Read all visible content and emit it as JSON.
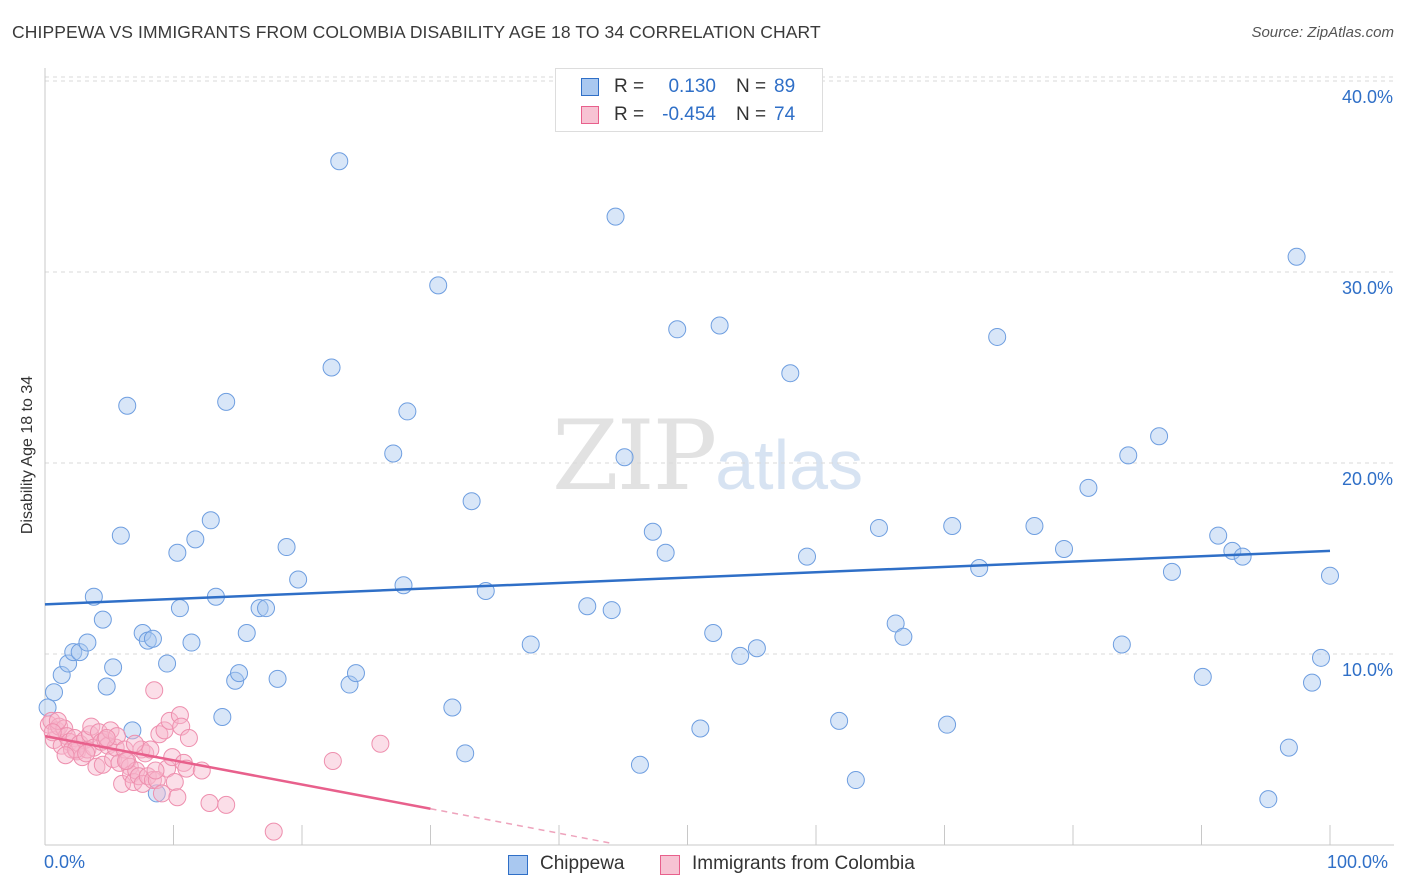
{
  "title": "CHIPPEWA VS IMMIGRANTS FROM COLOMBIA DISABILITY AGE 18 TO 34 CORRELATION CHART",
  "source": "Source: ZipAtlas.com",
  "watermark": {
    "zip": "ZIP",
    "atlas": "atlas"
  },
  "legend": {
    "rows": [
      {
        "r_label": "R =",
        "r_value": "0.130",
        "n_label": "N =",
        "n_value": "89"
      },
      {
        "r_label": "R =",
        "r_value": "-0.454",
        "n_label": "N =",
        "n_value": "74"
      }
    ]
  },
  "bottom_legend": [
    "Chippewa",
    "Immigrants from Colombia"
  ],
  "colors": {
    "blue": "#2f6fc7",
    "blue_fill": "#a9c8f0",
    "pink": "#e8608c",
    "pink_fill": "#f7b6cb"
  },
  "chart_data": {
    "type": "scatter",
    "title": "CHIPPEWA VS IMMIGRANTS FROM COLOMBIA DISABILITY AGE 18 TO 34 CORRELATION CHART",
    "xlabel": "",
    "ylabel": "Disability Age 18 to 34",
    "xlim": [
      0,
      100
    ],
    "ylim": [
      0,
      40
    ],
    "x_tick_labels": [
      "0.0%",
      "100.0%"
    ],
    "y_ticks": [
      10,
      20,
      30,
      40
    ],
    "y_tick_labels": [
      "10.0%",
      "20.0%",
      "30.0%",
      "40.0%"
    ],
    "grid": true,
    "legend_position": "top-center",
    "series": [
      {
        "name": "Chippewa",
        "color": "#2f6fc7",
        "trend": {
          "x": [
            0,
            100
          ],
          "y": [
            12.6,
            15.4
          ]
        },
        "points": [
          [
            0.7,
            8.0
          ],
          [
            1.3,
            8.9
          ],
          [
            1.8,
            9.5
          ],
          [
            2.2,
            10.1
          ],
          [
            2.7,
            10.1
          ],
          [
            3.3,
            10.6
          ],
          [
            3.8,
            13.0
          ],
          [
            4.5,
            11.8
          ],
          [
            4.8,
            8.3
          ],
          [
            5.3,
            9.3
          ],
          [
            5.9,
            16.2
          ],
          [
            6.4,
            23.0
          ],
          [
            6.8,
            6.0
          ],
          [
            7.6,
            11.1
          ],
          [
            8.0,
            10.7
          ],
          [
            8.4,
            10.8
          ],
          [
            8.7,
            2.7
          ],
          [
            9.5,
            9.5
          ],
          [
            10.3,
            15.3
          ],
          [
            10.5,
            12.4
          ],
          [
            11.4,
            10.6
          ],
          [
            11.7,
            16.0
          ],
          [
            12.9,
            17.0
          ],
          [
            13.3,
            13.0
          ],
          [
            13.8,
            6.7
          ],
          [
            14.1,
            23.2
          ],
          [
            14.8,
            8.6
          ],
          [
            15.1,
            9.0
          ],
          [
            15.7,
            11.1
          ],
          [
            16.7,
            12.4
          ],
          [
            17.2,
            12.4
          ],
          [
            18.1,
            8.7
          ],
          [
            18.8,
            15.6
          ],
          [
            19.7,
            13.9
          ],
          [
            22.3,
            25.0
          ],
          [
            22.9,
            35.8
          ],
          [
            23.7,
            8.4
          ],
          [
            24.2,
            9.0
          ],
          [
            27.1,
            20.5
          ],
          [
            27.9,
            13.6
          ],
          [
            28.2,
            22.7
          ],
          [
            30.6,
            29.3
          ],
          [
            31.7,
            7.2
          ],
          [
            32.7,
            4.8
          ],
          [
            33.2,
            18.0
          ],
          [
            34.3,
            13.3
          ],
          [
            37.8,
            10.5
          ],
          [
            42.2,
            12.5
          ],
          [
            44.1,
            12.3
          ],
          [
            44.4,
            32.9
          ],
          [
            45.1,
            20.3
          ],
          [
            46.3,
            4.2
          ],
          [
            47.3,
            16.4
          ],
          [
            48.3,
            15.3
          ],
          [
            49.2,
            27.0
          ],
          [
            51.0,
            6.1
          ],
          [
            52.0,
            11.1
          ],
          [
            52.5,
            27.2
          ],
          [
            54.1,
            9.9
          ],
          [
            55.4,
            10.3
          ],
          [
            58.0,
            24.7
          ],
          [
            59.3,
            15.1
          ],
          [
            61.8,
            6.5
          ],
          [
            63.1,
            3.4
          ],
          [
            64.9,
            16.6
          ],
          [
            66.2,
            11.6
          ],
          [
            66.8,
            10.9
          ],
          [
            70.2,
            6.3
          ],
          [
            70.6,
            16.7
          ],
          [
            72.7,
            14.5
          ],
          [
            74.1,
            26.6
          ],
          [
            77.0,
            16.7
          ],
          [
            79.3,
            15.5
          ],
          [
            81.2,
            18.7
          ],
          [
            83.8,
            10.5
          ],
          [
            84.3,
            20.4
          ],
          [
            86.7,
            21.4
          ],
          [
            87.7,
            14.3
          ],
          [
            90.1,
            8.8
          ],
          [
            91.3,
            16.2
          ],
          [
            92.4,
            15.4
          ],
          [
            93.2,
            15.1
          ],
          [
            95.2,
            2.4
          ],
          [
            96.8,
            5.1
          ],
          [
            97.4,
            30.8
          ],
          [
            98.6,
            8.5
          ],
          [
            99.3,
            9.8
          ],
          [
            100.0,
            14.1
          ],
          [
            0.2,
            7.2
          ]
        ]
      },
      {
        "name": "Immigrants from Colombia",
        "color": "#e8608c",
        "trend": {
          "x": [
            0,
            30
          ],
          "y": [
            5.7,
            1.9
          ]
        },
        "trend_dashed": {
          "x": [
            30,
            44
          ],
          "y": [
            1.9,
            0.1
          ]
        },
        "points": [
          [
            0.3,
            6.3
          ],
          [
            0.5,
            6.5
          ],
          [
            0.7,
            5.5
          ],
          [
            0.9,
            6.0
          ],
          [
            1.1,
            6.2
          ],
          [
            1.3,
            5.2
          ],
          [
            1.5,
            6.1
          ],
          [
            1.7,
            5.7
          ],
          [
            1.9,
            5.4
          ],
          [
            2.1,
            5.0
          ],
          [
            2.3,
            5.6
          ],
          [
            2.5,
            4.9
          ],
          [
            2.7,
            5.3
          ],
          [
            2.9,
            4.6
          ],
          [
            3.1,
            5.5
          ],
          [
            3.3,
            5.0
          ],
          [
            3.5,
            5.8
          ],
          [
            3.6,
            6.2
          ],
          [
            3.8,
            5.1
          ],
          [
            4.0,
            4.1
          ],
          [
            4.2,
            5.9
          ],
          [
            4.4,
            5.4
          ],
          [
            4.5,
            4.2
          ],
          [
            4.7,
            5.5
          ],
          [
            4.9,
            5.2
          ],
          [
            5.1,
            6.0
          ],
          [
            5.3,
            4.5
          ],
          [
            5.5,
            5.1
          ],
          [
            5.6,
            5.7
          ],
          [
            5.8,
            4.3
          ],
          [
            6.0,
            3.2
          ],
          [
            6.2,
            5.0
          ],
          [
            6.4,
            4.4
          ],
          [
            6.6,
            4.1
          ],
          [
            6.7,
            3.7
          ],
          [
            6.9,
            3.3
          ],
          [
            7.1,
            3.9
          ],
          [
            7.3,
            3.6
          ],
          [
            7.5,
            5.0
          ],
          [
            7.6,
            3.2
          ],
          [
            7.8,
            4.8
          ],
          [
            8.0,
            3.6
          ],
          [
            8.2,
            5.0
          ],
          [
            8.4,
            3.4
          ],
          [
            8.5,
            8.1
          ],
          [
            8.7,
            3.4
          ],
          [
            8.9,
            5.8
          ],
          [
            9.1,
            2.7
          ],
          [
            9.3,
            6.0
          ],
          [
            9.5,
            4.0
          ],
          [
            9.7,
            6.5
          ],
          [
            9.9,
            4.6
          ],
          [
            10.1,
            3.3
          ],
          [
            10.3,
            2.5
          ],
          [
            10.5,
            6.8
          ],
          [
            10.6,
            6.2
          ],
          [
            10.8,
            4.3
          ],
          [
            11.0,
            4.0
          ],
          [
            11.2,
            5.6
          ],
          [
            12.2,
            3.9
          ],
          [
            12.8,
            2.2
          ],
          [
            14.1,
            2.1
          ],
          [
            17.8,
            0.7
          ],
          [
            22.4,
            4.4
          ],
          [
            26.1,
            5.3
          ],
          [
            1.0,
            6.5
          ],
          [
            2.4,
            5.0
          ],
          [
            3.2,
            4.8
          ],
          [
            4.8,
            5.6
          ],
          [
            6.3,
            4.4
          ],
          [
            7.0,
            5.3
          ],
          [
            8.6,
            3.9
          ],
          [
            0.6,
            5.9
          ],
          [
            1.6,
            4.7
          ]
        ]
      }
    ]
  }
}
